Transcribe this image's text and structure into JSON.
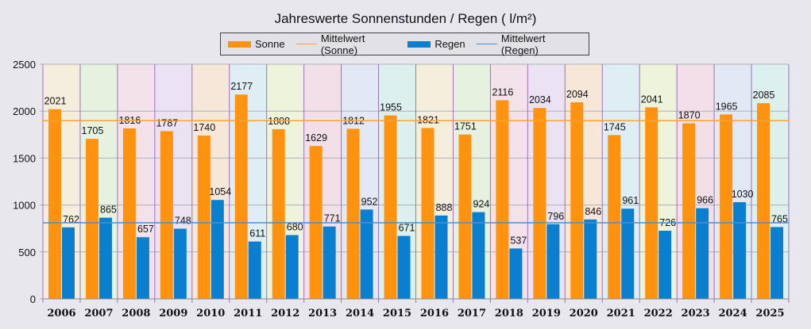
{
  "chart_data": {
    "type": "bar",
    "title": "Jahreswerte Sonnenstunden /  Regen ( l/m²)",
    "categories": [
      "2006",
      "2007",
      "2008",
      "2009",
      "2010",
      "2011",
      "2012",
      "2013",
      "2014",
      "2015",
      "2016",
      "2017",
      "2018",
      "2019",
      "2020",
      "2021",
      "2022",
      "2023",
      "2024",
      "2025"
    ],
    "series": [
      {
        "name": "Sonne",
        "color": "#ff9310",
        "values": [
          2021,
          1705,
          1816,
          1787,
          1740,
          2177,
          1808,
          1629,
          1812,
          1955,
          1821,
          1751,
          2116,
          2034,
          2094,
          1745,
          2041,
          1870,
          1965,
          2085
        ]
      },
      {
        "name": "Regen",
        "color": "#0a7fd0",
        "values": [
          762,
          865,
          657,
          748,
          1054,
          611,
          680,
          771,
          952,
          671,
          888,
          924,
          537,
          796,
          846,
          961,
          726,
          966,
          1030,
          765
        ]
      }
    ],
    "reference_lines": [
      {
        "name": "Mittelwert (Sonne)",
        "value": 1898.6,
        "color": "#ffa030"
      },
      {
        "name": "Mittelwert (Regen)",
        "value": 810.5,
        "color": "#4a90d0"
      }
    ],
    "yticks": [
      "0",
      "500",
      "1000",
      "1500",
      "2000",
      "2500"
    ],
    "ylim": [
      0,
      2500
    ],
    "xlabel": "",
    "ylabel": "",
    "grid": true,
    "legend_position": "top-center"
  }
}
